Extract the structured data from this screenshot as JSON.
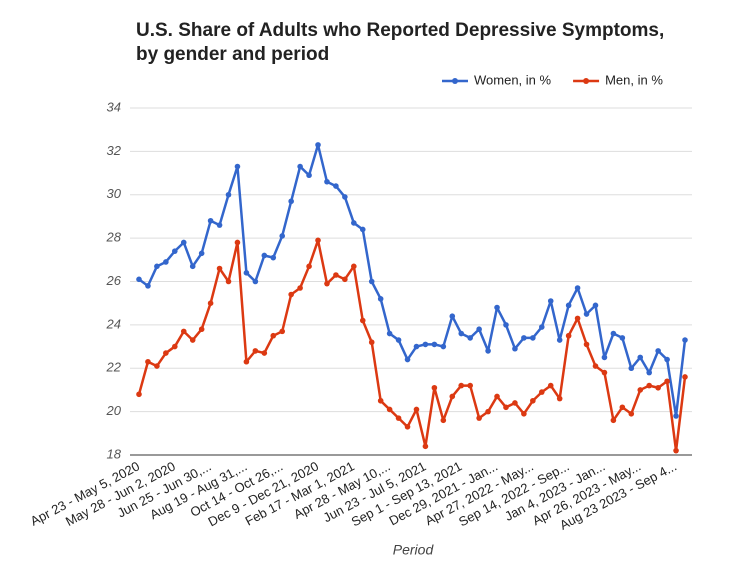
{
  "chart_data": {
    "type": "line",
    "title": "U.S. Share of Adults who Reported Depressive Symptoms,",
    "subtitle": "by gender and period",
    "x_label": "Period",
    "categories": [
      "Apr 23 - May 5, 2020",
      null,
      null,
      null,
      "May 28 - Jun 2, 2020",
      null,
      null,
      null,
      "Jun 25 - Jun 30,...",
      null,
      null,
      null,
      "Aug 19 - Aug 31,...",
      null,
      null,
      null,
      "Oct 14 - Oct 26,...",
      null,
      null,
      null,
      "Dec 9 - Dec 21, 2020",
      null,
      null,
      null,
      "Feb 17 - Mar 1, 2021",
      null,
      null,
      null,
      "Apr 28 - May 10,...",
      null,
      null,
      null,
      "Jun 23 - Jul 5, 2021",
      null,
      null,
      null,
      "Sep 1 - Sep 13, 2021",
      null,
      null,
      null,
      "Dec 29, 2021 - Jan...",
      null,
      null,
      null,
      "Apr 27, 2022 - May...",
      null,
      null,
      null,
      "Sep 14, 2022 - Sep...",
      null,
      null,
      null,
      "Jan 4, 2023 - Jan...",
      null,
      null,
      null,
      "Apr 26, 2023 - May...",
      null,
      null,
      null,
      "Aug 23 2023 - Sep 4...",
      null
    ],
    "series": [
      {
        "name": "Women, in %",
        "color": "#3366cc",
        "values": [
          26.1,
          25.8,
          26.7,
          26.9,
          27.4,
          27.8,
          26.7,
          27.3,
          28.8,
          28.6,
          30.0,
          31.3,
          26.4,
          26.0,
          27.2,
          27.1,
          28.1,
          29.7,
          31.3,
          30.9,
          32.3,
          30.6,
          30.4,
          29.9,
          28.7,
          28.4,
          26.0,
          25.2,
          23.6,
          23.3,
          22.4,
          23.0,
          23.1,
          23.1,
          23.0,
          24.4,
          23.6,
          23.4,
          23.8,
          22.8,
          24.8,
          24.0,
          22.9,
          23.4,
          23.4,
          23.9,
          25.1,
          23.3,
          24.9,
          25.7,
          24.5,
          24.9,
          22.5,
          23.6,
          23.4,
          22.0,
          22.5,
          21.8,
          22.8,
          22.4,
          19.8,
          23.3
        ]
      },
      {
        "name": "Men, in %",
        "color": "#dc3912",
        "values": [
          20.8,
          22.3,
          22.1,
          22.7,
          23.0,
          23.7,
          23.3,
          23.8,
          25.0,
          26.6,
          26.0,
          27.8,
          22.3,
          22.8,
          22.7,
          23.5,
          23.7,
          25.4,
          25.7,
          26.7,
          27.9,
          25.9,
          26.3,
          26.1,
          26.7,
          24.2,
          23.2,
          20.5,
          20.1,
          19.7,
          19.3,
          20.1,
          18.4,
          21.1,
          19.6,
          20.7,
          21.2,
          21.2,
          19.7,
          20.0,
          20.7,
          20.2,
          20.4,
          19.9,
          20.5,
          20.9,
          21.2,
          20.6,
          23.5,
          24.3,
          23.1,
          22.1,
          21.8,
          19.6,
          20.2,
          19.9,
          21.0,
          21.2,
          21.1,
          21.4,
          18.2,
          21.6
        ]
      }
    ],
    "ylim": [
      18,
      34
    ],
    "yticks": [
      18,
      20,
      22,
      24,
      26,
      28,
      30,
      32,
      34
    ],
    "grid": true,
    "legend": "top-right"
  }
}
